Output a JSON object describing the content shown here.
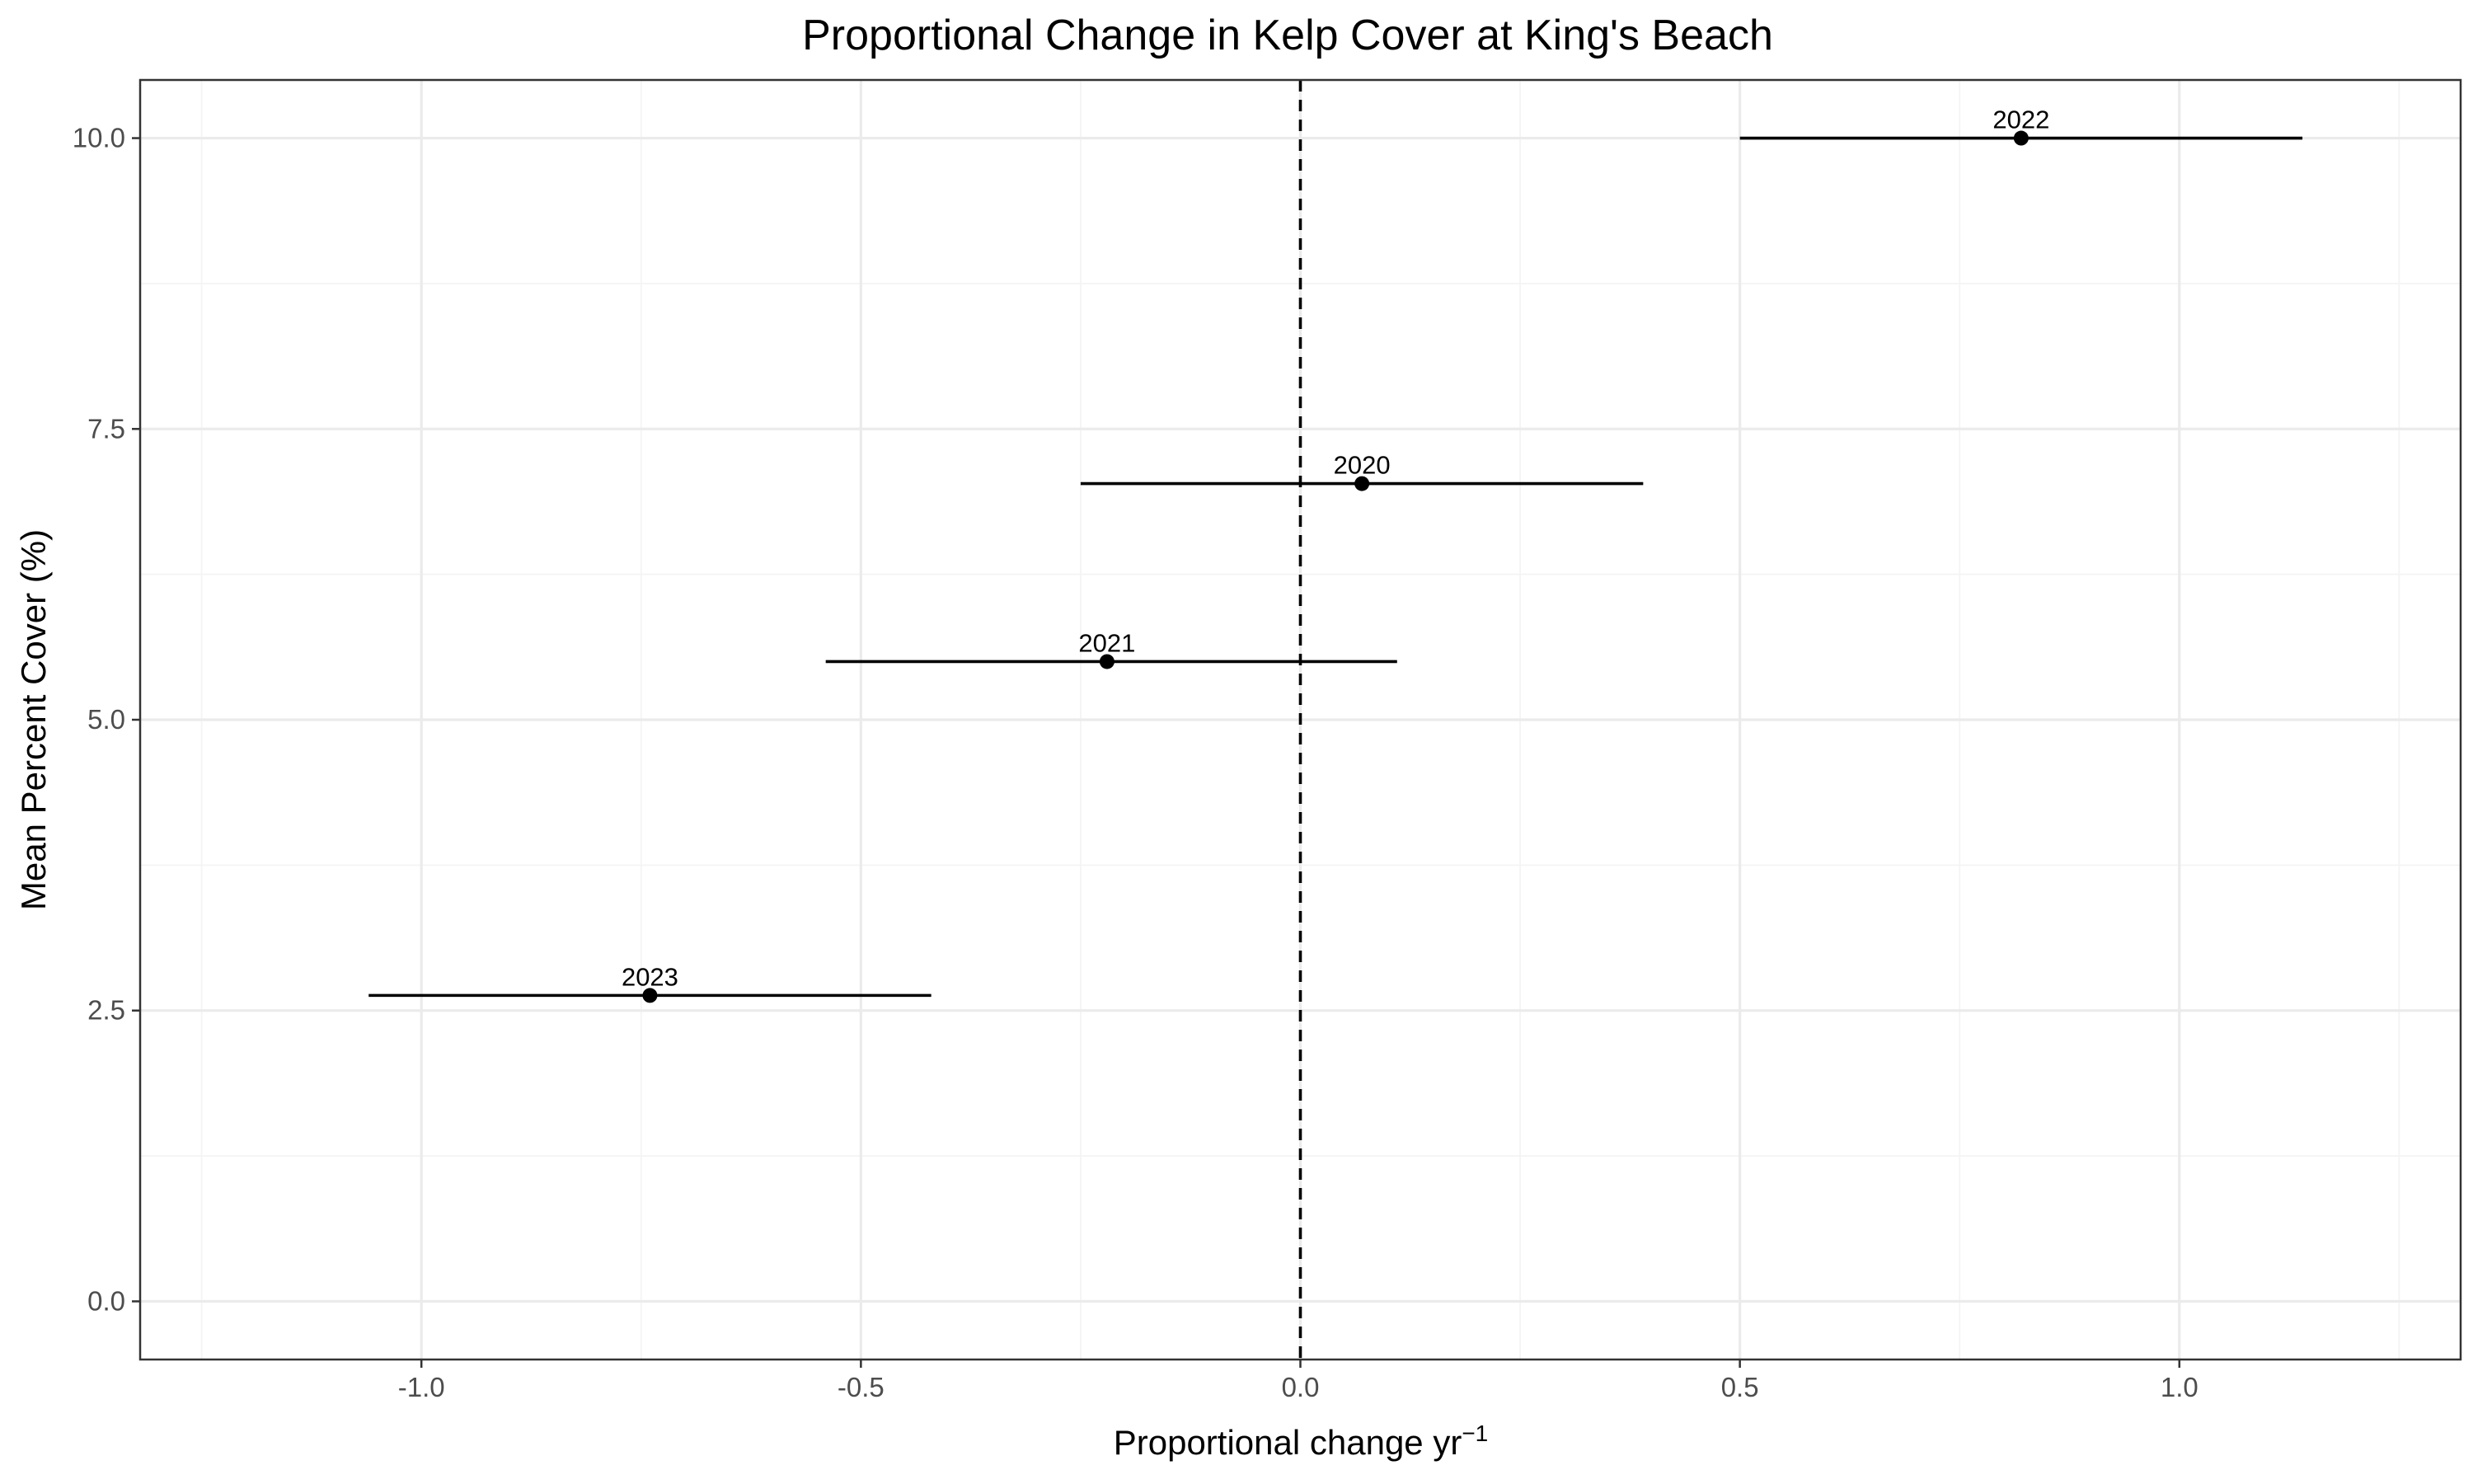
{
  "chart_data": {
    "type": "scatter",
    "title": "Proportional Change in Kelp Cover at King's Beach",
    "xlabel": "Proportional change  yr",
    "xlabel_superscript": "−1",
    "ylabel": "Mean Percent Cover (%)",
    "xlim": [
      -1.32,
      1.32
    ],
    "ylim": [
      -0.5,
      10.5
    ],
    "x_ticks": [
      -1.0,
      -0.5,
      0.0,
      0.5,
      1.0
    ],
    "x_tick_labels": [
      "-1.0",
      "-0.5",
      "0.0",
      "0.5",
      "1.0"
    ],
    "y_ticks": [
      0.0,
      2.5,
      5.0,
      7.5,
      10.0
    ],
    "y_tick_labels": [
      "0.0",
      "2.5",
      "5.0",
      "7.5",
      "10.0"
    ],
    "x_minor_ticks": [
      -1.25,
      -0.75,
      -0.25,
      0.25,
      0.75,
      1.25
    ],
    "y_minor_ticks": [
      1.25,
      3.75,
      6.25,
      8.75
    ],
    "grid": true,
    "reference_line": {
      "x": 0,
      "style": "dashed"
    },
    "points": [
      {
        "label": "2022",
        "x": 0.82,
        "xmin": 0.5,
        "xmax": 1.14,
        "y": 10.0
      },
      {
        "label": "2020",
        "x": 0.07,
        "xmin": -0.25,
        "xmax": 0.39,
        "y": 7.03
      },
      {
        "label": "2021",
        "x": -0.22,
        "xmin": -0.54,
        "xmax": 0.11,
        "y": 5.5
      },
      {
        "label": "2023",
        "x": -0.74,
        "xmin": -1.06,
        "xmax": -0.42,
        "y": 2.63
      }
    ],
    "colors": {
      "points": "#000000",
      "grid": "#ebebeb",
      "border": "#333333"
    }
  }
}
